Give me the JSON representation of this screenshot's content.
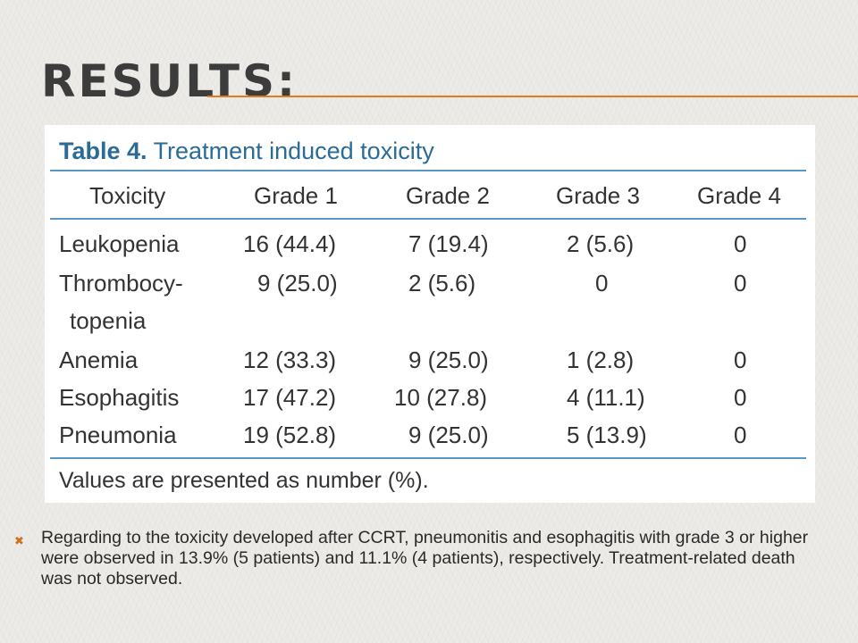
{
  "slide": {
    "title": "RESULTS:",
    "accent_color": "#e07b1c"
  },
  "table": {
    "caption_number": "Table 4.",
    "caption_text": "Treatment induced toxicity",
    "headers": [
      "Toxicity",
      "Grade 1",
      "Grade 2",
      "Grade 3",
      "Grade 4"
    ],
    "rows": [
      {
        "toxicity": "Leukopenia",
        "grade1": "16 (44.4)",
        "grade2": "7 (19.4)",
        "grade3": "2 (5.6)",
        "grade4": "0"
      },
      {
        "toxicity": "Thrombocy-",
        "toxicity_cont": "topenia",
        "grade1": "9 (25.0)",
        "grade2": "2 (5.6)",
        "grade3": "0",
        "grade4": "0"
      },
      {
        "toxicity": "Anemia",
        "grade1": "12 (33.3)",
        "grade2": "9 (25.0)",
        "grade3": "1 (2.8)",
        "grade4": "0"
      },
      {
        "toxicity": "Esophagitis",
        "grade1": "17 (47.2)",
        "grade2": "10 (27.8)",
        "grade3": "4 (11.1)",
        "grade4": "0"
      },
      {
        "toxicity": "Pneumonia",
        "grade1": "19 (52.8)",
        "grade2": "9 (25.0)",
        "grade3": "5 (13.9)",
        "grade4": "0"
      }
    ],
    "footnote": "Values are presented as number (%).",
    "caption_color": "#2a6c96",
    "rule_color": "#5b97c7"
  },
  "bullet": {
    "icon": "x-bullet-icon",
    "text": "Regarding to the toxicity developed after CCRT, pneumonitis and esophagitis with grade 3 or higher were observed in 13.9% (5 patients) and 11.1% (4 patients), respectively. Treatment-related death was not observed."
  }
}
